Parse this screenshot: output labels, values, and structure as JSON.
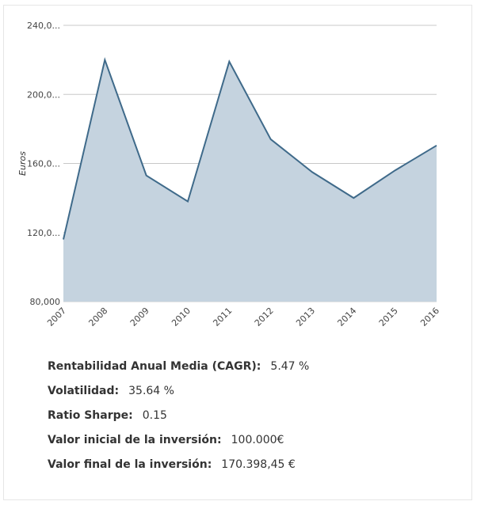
{
  "chart_data": {
    "type": "area",
    "x": [
      "2007",
      "2008",
      "2009",
      "2010",
      "2011",
      "2012",
      "2013",
      "2014",
      "2015",
      "2016"
    ],
    "series": [
      {
        "values": [
          116,
          220,
          153,
          138,
          219,
          174,
          155,
          140,
          156,
          170.4
        ]
      }
    ],
    "y_ticks": [
      "80,000",
      "120,0...",
      "160,0...",
      "200,0...",
      "240,0..."
    ],
    "y_tick_values": [
      80,
      120,
      160,
      200,
      240
    ],
    "ylim": [
      80,
      240
    ],
    "ylabel": "Euros",
    "xlabel": "",
    "grid": true,
    "colors": {
      "line": "#3f6a8a",
      "fill": "#c5d3df",
      "grid": "#c8c8c8"
    }
  },
  "stats": [
    {
      "label": "Rentabilidad Anual Media (CAGR):",
      "value": "5.47 %"
    },
    {
      "label": "Volatilidad:",
      "value": "35.64 %"
    },
    {
      "label": "Ratio Sharpe:",
      "value": "0.15"
    },
    {
      "label": "Valor inicial de la inversión:",
      "value": "100.000€"
    },
    {
      "label": "Valor final de la inversión:",
      "value": "170.398,45 €"
    }
  ]
}
